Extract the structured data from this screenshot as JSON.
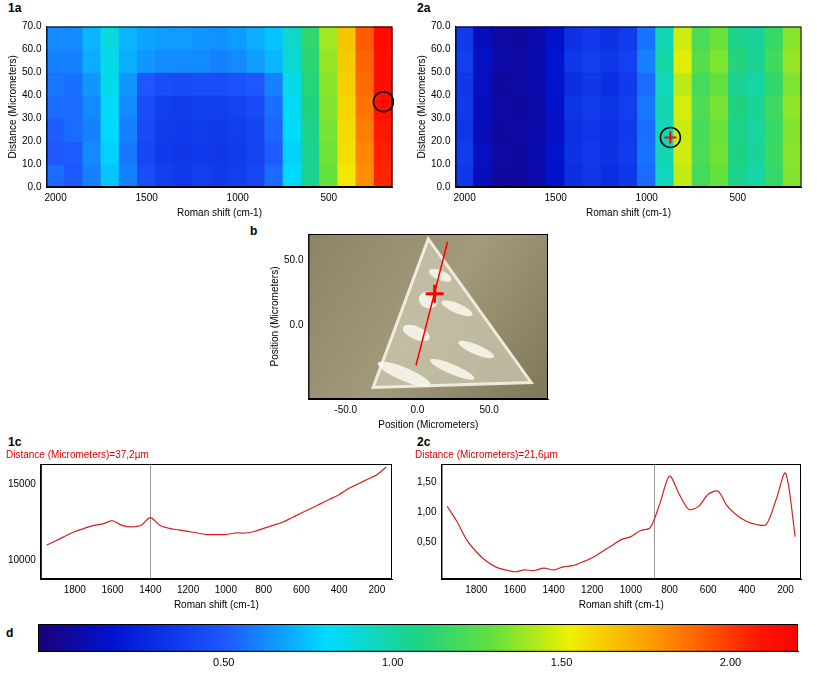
{
  "chart_data": [
    {
      "panel": "1a",
      "type": "heatmap",
      "x_label": "Roman shift (cm-1)",
      "y_label": "Distance (Micrometers)",
      "x": [
        2000,
        1900,
        1800,
        1700,
        1600,
        1500,
        1400,
        1300,
        1200,
        1100,
        1000,
        900,
        800,
        700,
        600,
        500,
        400,
        300,
        200
      ],
      "y": [
        5,
        15,
        25,
        35,
        45,
        55,
        65
      ],
      "cells": [
        [
          0.55,
          0.5,
          0.6,
          0.75,
          0.6,
          0.45,
          0.38,
          0.36,
          0.38,
          0.36,
          0.38,
          0.42,
          0.55,
          0.8,
          1.05,
          1.3,
          1.55,
          1.8,
          2.05
        ],
        [
          0.5,
          0.52,
          0.62,
          0.78,
          0.58,
          0.42,
          0.36,
          0.35,
          0.36,
          0.35,
          0.37,
          0.4,
          0.52,
          0.78,
          1.05,
          1.32,
          1.57,
          1.82,
          2.06
        ],
        [
          0.52,
          0.55,
          0.6,
          0.8,
          0.6,
          0.44,
          0.37,
          0.36,
          0.37,
          0.36,
          0.38,
          0.41,
          0.54,
          0.8,
          1.06,
          1.33,
          1.58,
          1.84,
          2.08
        ],
        [
          0.55,
          0.55,
          0.62,
          0.82,
          0.62,
          0.45,
          0.38,
          0.37,
          0.38,
          0.38,
          0.4,
          0.44,
          0.56,
          0.82,
          1.08,
          1.35,
          1.6,
          1.86,
          2.1
        ],
        [
          0.58,
          0.56,
          0.65,
          0.85,
          0.65,
          0.5,
          0.45,
          0.44,
          0.45,
          0.45,
          0.48,
          0.5,
          0.6,
          0.85,
          1.1,
          1.36,
          1.62,
          1.88,
          2.12
        ],
        [
          0.6,
          0.6,
          0.7,
          0.85,
          0.7,
          0.65,
          0.62,
          0.62,
          0.62,
          0.6,
          0.62,
          0.66,
          0.72,
          0.9,
          1.12,
          1.38,
          1.63,
          1.9,
          2.12
        ],
        [
          0.62,
          0.62,
          0.72,
          0.88,
          0.72,
          0.68,
          0.66,
          0.66,
          0.65,
          0.64,
          0.66,
          0.7,
          0.75,
          0.92,
          1.14,
          1.4,
          1.65,
          1.92,
          2.14
        ]
      ],
      "xlim": [
        2050,
        150
      ],
      "ylim": [
        0,
        70
      ],
      "xticks": [
        2000,
        1500,
        1000,
        500
      ],
      "yticks": [
        {
          "value": 0,
          "label": "0.0"
        },
        {
          "value": 10,
          "label": "10.0"
        },
        {
          "value": 20,
          "label": "20.0"
        },
        {
          "value": 30,
          "label": "30.0"
        },
        {
          "value": 40,
          "label": "40.0"
        },
        {
          "value": 50,
          "label": "50.0"
        },
        {
          "value": 60,
          "label": "60.0"
        },
        {
          "value": 70,
          "label": "70.0"
        }
      ],
      "marker_point": {
        "x": 200,
        "y": 37.2
      },
      "color": "#ff0000"
    },
    {
      "panel": "2a",
      "type": "heatmap",
      "x_label": "Roman shift (cm-1)",
      "y_label": "Distance (Micrometers)",
      "x": [
        2000,
        1900,
        1800,
        1700,
        1600,
        1500,
        1400,
        1300,
        1200,
        1100,
        1000,
        900,
        800,
        700,
        600,
        500,
        400,
        300,
        200
      ],
      "y": [
        5,
        15,
        25,
        35,
        45,
        55,
        65
      ],
      "cells": [
        [
          0.35,
          0.12,
          0.05,
          0.05,
          0.08,
          0.15,
          0.3,
          0.35,
          0.3,
          0.35,
          0.55,
          0.95,
          1.45,
          1.2,
          1.3,
          1.05,
          1.0,
          1.15,
          1.35
        ],
        [
          0.37,
          0.13,
          0.06,
          0.05,
          0.09,
          0.16,
          0.32,
          0.36,
          0.32,
          0.37,
          0.57,
          0.97,
          1.47,
          1.22,
          1.32,
          1.07,
          1.02,
          1.17,
          1.36
        ],
        [
          0.34,
          0.11,
          0.05,
          0.06,
          0.08,
          0.14,
          0.31,
          0.34,
          0.31,
          0.36,
          0.56,
          0.96,
          1.46,
          1.21,
          1.31,
          1.06,
          1.01,
          1.16,
          1.35
        ],
        [
          0.36,
          0.12,
          0.06,
          0.05,
          0.07,
          0.15,
          0.33,
          0.37,
          0.33,
          0.38,
          0.58,
          0.98,
          1.48,
          1.23,
          1.33,
          1.08,
          1.03,
          1.18,
          1.37
        ],
        [
          0.35,
          0.13,
          0.05,
          0.06,
          0.08,
          0.16,
          0.3,
          0.35,
          0.3,
          0.36,
          0.55,
          0.95,
          1.44,
          1.2,
          1.29,
          1.04,
          1.0,
          1.14,
          1.34
        ],
        [
          0.38,
          0.14,
          0.07,
          0.06,
          0.09,
          0.17,
          0.34,
          0.38,
          0.34,
          0.39,
          0.6,
          1.0,
          1.5,
          1.25,
          1.34,
          1.09,
          1.04,
          1.19,
          1.38
        ],
        [
          0.36,
          0.12,
          0.06,
          0.05,
          0.08,
          0.15,
          0.32,
          0.36,
          0.32,
          0.37,
          0.57,
          0.97,
          1.47,
          1.22,
          1.31,
          1.06,
          1.02,
          1.16,
          1.36
        ]
      ],
      "xlim": [
        2050,
        150
      ],
      "ylim": [
        0,
        70
      ],
      "xticks": [
        2000,
        1500,
        1000,
        500
      ],
      "yticks": [
        {
          "value": 0,
          "label": "0.0"
        },
        {
          "value": 10,
          "label": "10.0"
        },
        {
          "value": 20,
          "label": "20.0"
        },
        {
          "value": 30,
          "label": "30.0"
        },
        {
          "value": 40,
          "label": "40.0"
        },
        {
          "value": 50,
          "label": "50.0"
        },
        {
          "value": 60,
          "label": "60.0"
        },
        {
          "value": 70,
          "label": "70.0"
        }
      ],
      "marker_point": {
        "x": 870,
        "y": 21.6
      },
      "color": "#ff0000"
    },
    {
      "panel": "b",
      "type": "scatter",
      "x_label": "Position (Micrometers)",
      "y_label": "Position (Micrometers)",
      "xlim": [
        -76,
        91
      ],
      "ylim": [
        -57,
        70
      ],
      "xticks": [
        {
          "value": -50,
          "label": "-50.0"
        },
        {
          "value": 0,
          "label": "0.0"
        },
        {
          "value": 50,
          "label": "50.0"
        }
      ],
      "yticks": [
        {
          "value": 0,
          "label": "0.0"
        },
        {
          "value": 50,
          "label": "50.0"
        }
      ],
      "scan_line": {
        "x": [
          -1,
          21
        ],
        "y": [
          -31,
          64
        ]
      },
      "marker_point": {
        "x": 12,
        "y": 24
      },
      "color": "#ff0000"
    },
    {
      "panel": "1c",
      "type": "line",
      "title": "Distance (Micrometers)=37,2µm",
      "x_label": "Roman shift (cm-1)",
      "x": [
        1950,
        1900,
        1850,
        1800,
        1750,
        1700,
        1650,
        1600,
        1550,
        1500,
        1450,
        1400,
        1350,
        1300,
        1250,
        1200,
        1150,
        1100,
        1050,
        1000,
        950,
        900,
        850,
        800,
        750,
        700,
        650,
        600,
        550,
        500,
        450,
        400,
        350,
        300,
        250,
        200,
        150
      ],
      "values": [
        11000,
        11300,
        11600,
        11900,
        12100,
        12300,
        12400,
        12600,
        12300,
        12200,
        12300,
        12800,
        12300,
        12100,
        12000,
        11900,
        11800,
        11700,
        11700,
        11700,
        11800,
        11800,
        11900,
        12100,
        12300,
        12500,
        12800,
        13100,
        13400,
        13700,
        14000,
        14300,
        14700,
        15000,
        15300,
        15600,
        16100
      ],
      "color": "#d42020",
      "xlim": [
        1980,
        120
      ],
      "ylim": [
        8800,
        16300
      ],
      "xticks": [
        1800,
        1600,
        1400,
        1200,
        1000,
        800,
        600,
        400,
        200
      ],
      "yticks": [
        10000,
        15000
      ],
      "cursor": 1400
    },
    {
      "panel": "2c",
      "type": "line",
      "title": "Distance (Micrometers)=21,6µm",
      "x_label": "Roman shift (cm-1)",
      "x": [
        1950,
        1900,
        1850,
        1800,
        1750,
        1700,
        1650,
        1600,
        1550,
        1500,
        1450,
        1400,
        1350,
        1300,
        1250,
        1200,
        1150,
        1100,
        1050,
        1000,
        950,
        900,
        850,
        800,
        750,
        700,
        650,
        600,
        550,
        500,
        450,
        400,
        350,
        300,
        250,
        200,
        150
      ],
      "values": [
        1.1,
        0.85,
        0.55,
        0.35,
        0.2,
        0.1,
        0.05,
        0.02,
        0.05,
        0.04,
        0.08,
        0.05,
        0.1,
        0.12,
        0.18,
        0.25,
        0.35,
        0.45,
        0.55,
        0.6,
        0.7,
        0.75,
        1.15,
        1.6,
        1.3,
        1.05,
        1.1,
        1.3,
        1.35,
        1.1,
        0.95,
        0.85,
        0.8,
        0.8,
        1.2,
        1.65,
        0.6
      ],
      "color": "#d42020",
      "xlim": [
        1980,
        120
      ],
      "ylim": [
        -0.1,
        1.8
      ],
      "xticks": [
        1800,
        1600,
        1400,
        1200,
        1000,
        800,
        600,
        400,
        200
      ],
      "yticks": [
        {
          "value": 0.5,
          "label": "0,50"
        },
        {
          "value": 1,
          "label": "1,00"
        },
        {
          "value": 1.5,
          "label": "1,50"
        }
      ],
      "cursor": 880
    },
    {
      "panel": "d",
      "type": "colorbar",
      "xlim": [
        -0.05,
        2.2
      ],
      "xticks": [
        {
          "value": 0.5,
          "label": "0.50"
        },
        {
          "value": 1,
          "label": "1.00"
        },
        {
          "value": 1.5,
          "label": "1.50"
        },
        {
          "value": 2,
          "label": "2.00"
        }
      ]
    }
  ]
}
